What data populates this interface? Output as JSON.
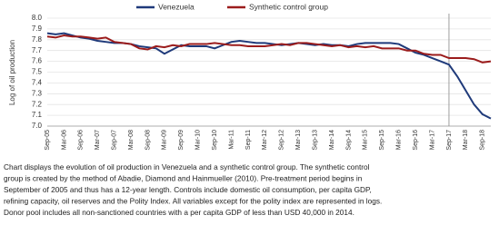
{
  "chart_data": {
    "type": "line",
    "ylabel": "Log of oil production",
    "categories": [
      "Sep-05",
      null,
      "Mar-06",
      null,
      "Sep-06",
      null,
      "Mar-07",
      null,
      "Sep-07",
      null,
      "Mar-08",
      null,
      "Sep-08",
      null,
      "Mar-09",
      null,
      "Sep-09",
      null,
      "Mar-10",
      null,
      "Sep-10",
      null,
      "Mar-11",
      null,
      "Sep-11",
      null,
      "Mar-12",
      null,
      "Sep-12",
      null,
      "Mar-13",
      null,
      "Sep-13",
      null,
      "Mar-14",
      null,
      "Sep-14",
      null,
      "Mar-15",
      null,
      "Sep-15",
      null,
      "Mar-16",
      null,
      "Sep-16",
      null,
      "Mar-17",
      null,
      "Sep-17",
      null,
      "Mar-18",
      null,
      "Sep-18",
      null
    ],
    "series": [
      {
        "name": "Venezuela",
        "color": "#1f3a7a",
        "values": [
          7.86,
          7.85,
          7.86,
          7.84,
          7.82,
          7.81,
          7.79,
          7.78,
          7.77,
          7.77,
          7.76,
          7.74,
          7.73,
          7.72,
          7.67,
          7.71,
          7.75,
          7.74,
          7.74,
          7.74,
          7.72,
          7.75,
          7.78,
          7.79,
          7.78,
          7.77,
          7.77,
          7.76,
          7.75,
          7.76,
          7.77,
          7.76,
          7.75,
          7.76,
          7.75,
          7.75,
          7.74,
          7.76,
          7.77,
          7.77,
          7.77,
          7.77,
          7.76,
          7.72,
          7.68,
          7.66,
          7.63,
          7.6,
          7.57,
          7.46,
          7.33,
          7.2,
          7.11,
          7.07
        ]
      },
      {
        "name": "Synthetic control group",
        "color": "#9b1c1c",
        "values": [
          7.83,
          7.82,
          7.84,
          7.83,
          7.83,
          7.82,
          7.81,
          7.82,
          7.78,
          7.77,
          7.76,
          7.72,
          7.71,
          7.74,
          7.73,
          7.75,
          7.74,
          7.76,
          7.76,
          7.76,
          7.77,
          7.76,
          7.75,
          7.75,
          7.74,
          7.74,
          7.74,
          7.75,
          7.76,
          7.75,
          7.77,
          7.77,
          7.76,
          7.75,
          7.74,
          7.75,
          7.73,
          7.74,
          7.73,
          7.74,
          7.72,
          7.72,
          7.72,
          7.7,
          7.7,
          7.67,
          7.66,
          7.66,
          7.63,
          7.63,
          7.63,
          7.62,
          7.59,
          7.6
        ]
      }
    ],
    "ylim": [
      7.0,
      8.0
    ],
    "yticks": [
      {
        "value": 7.0,
        "label": "7.0"
      },
      7.1,
      7.2,
      7.3,
      7.4,
      7.5,
      7.6,
      7.7,
      7.8,
      7.9,
      {
        "value": 8.0,
        "label": "8.0"
      }
    ],
    "grid": true,
    "vline": "Sep-17",
    "caption": [
      "Chart displays the evolution of oil production in Venezuela and a synthetic control group.  The synthetic control",
      "group is created by the method of Abadie, Diamond and Hainmueller (2010).  Pre-treatment period begins in",
      "September of 2005 and thus has a 12-year length.  Controls include domestic oil consumption, per capita GDP,",
      "refining capacity, oil reserves and the Polity Index.  All variables except for the polity index are represented in logs.",
      "Donor pool includes all non-sanctioned countries with a per capita GDP of less than USD 40,000 in 2014."
    ]
  }
}
